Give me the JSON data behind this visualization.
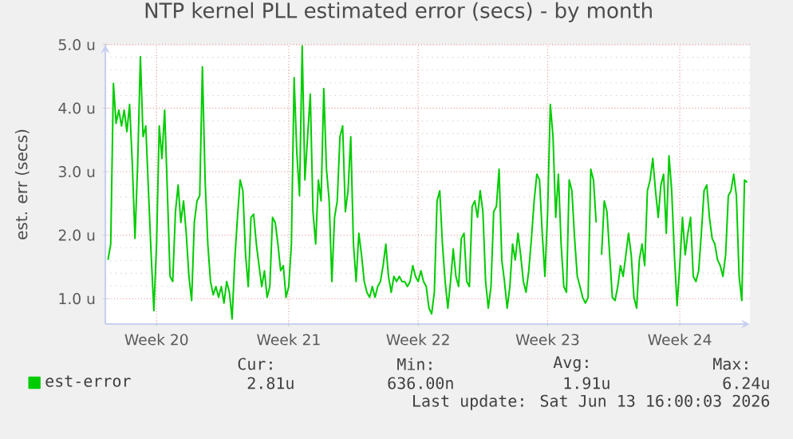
{
  "chart_data": {
    "type": "line",
    "title": "NTP kernel PLL estimated error (secs) - by month",
    "ylabel": "est. err (secs)",
    "ylim": [
      0.6,
      5.0
    ],
    "categories": [
      null,
      null,
      null,
      null,
      null,
      null,
      null,
      null,
      null,
      null,
      null,
      null,
      null,
      null,
      null,
      null,
      null,
      null,
      "Week 20",
      null,
      null,
      null,
      null,
      null,
      null,
      null,
      null,
      null,
      null,
      null,
      null,
      null,
      null,
      null,
      null,
      null,
      null,
      null,
      null,
      null,
      null,
      null,
      null,
      null,
      null,
      null,
      null,
      null,
      null,
      null,
      null,
      null,
      null,
      null,
      null,
      null,
      null,
      null,
      null,
      null,
      null,
      null,
      null,
      null,
      null,
      null,
      null,
      "Week 21",
      null,
      null,
      null,
      null,
      null,
      null,
      null,
      null,
      null,
      null,
      null,
      null,
      null,
      null,
      null,
      null,
      null,
      null,
      null,
      null,
      null,
      null,
      null,
      null,
      null,
      null,
      null,
      null,
      null,
      null,
      null,
      null,
      null,
      null,
      null,
      null,
      null,
      null,
      null,
      null,
      null,
      null,
      null,
      null,
      null,
      null,
      null,
      "Week 22",
      null,
      null,
      null,
      null,
      null,
      null,
      null,
      null,
      null,
      null,
      null,
      null,
      null,
      null,
      null,
      null,
      null,
      null,
      null,
      null,
      null,
      null,
      null,
      null,
      null,
      null,
      null,
      null,
      null,
      null,
      null,
      null,
      null,
      null,
      null,
      null,
      null,
      null,
      null,
      null,
      null,
      null,
      null,
      null,
      null,
      null,
      null,
      "Week 23",
      null,
      null,
      null,
      null,
      null,
      null,
      null,
      null,
      null,
      null,
      null,
      null,
      null,
      null,
      null,
      null,
      null,
      null,
      null,
      null,
      null,
      null,
      null,
      null,
      null,
      null,
      null,
      null,
      null,
      null,
      null,
      null,
      null,
      null,
      null,
      null,
      null,
      null,
      null,
      null,
      null,
      null,
      null,
      null,
      null,
      null,
      null,
      null,
      "Week 24",
      null,
      null,
      null,
      null,
      null,
      null,
      null,
      null,
      null,
      null,
      null,
      null,
      null,
      null,
      null,
      null,
      null,
      null,
      null,
      null,
      null,
      null,
      null,
      null,
      null
    ],
    "yticks": [
      {
        "value": 1,
        "label": "1.0 u"
      },
      {
        "value": 2,
        "label": "2.0 u"
      },
      {
        "value": 3,
        "label": "3.0 u"
      },
      {
        "value": 4,
        "label": "4.0 u"
      },
      {
        "value": 5,
        "label": "5.0 u"
      }
    ],
    "grid": true,
    "legend": "bottom left",
    "marker": "none",
    "line_style": "solid",
    "series": [
      {
        "name": "est-error",
        "color": "#00cc00",
        "values": [
          1.61,
          1.86,
          4.39,
          3.76,
          3.97,
          3.72,
          3.97,
          3.63,
          4.06,
          3.13,
          1.95,
          3.13,
          4.81,
          3.55,
          3.72,
          2.7,
          1.69,
          0.81,
          1.86,
          3.72,
          3.21,
          3.97,
          2.7,
          1.35,
          1.27,
          2.37,
          2.79,
          2.2,
          2.54,
          2.03,
          1.35,
          0.97,
          2.2,
          2.54,
          2.62,
          4.65,
          2.87,
          1.86,
          1.27,
          1.06,
          1.19,
          1.02,
          1.19,
          0.93,
          1.27,
          1.1,
          0.68,
          1.61,
          2.28,
          2.87,
          2.7,
          1.69,
          1.19,
          2.28,
          2.33,
          1.86,
          1.52,
          1.19,
          1.44,
          1.02,
          1.19,
          2.28,
          2.2,
          1.86,
          1.44,
          1.52,
          1.02,
          1.19,
          1.86,
          4.48,
          3.3,
          2.62,
          4.98,
          2.87,
          3.55,
          4.22,
          2.37,
          1.86,
          2.87,
          2.54,
          4.31,
          3.04,
          2.54,
          1.27,
          2.28,
          2.54,
          3.55,
          3.72,
          2.37,
          2.7,
          3.55,
          1.86,
          1.27,
          2.03,
          1.69,
          1.27,
          1.1,
          1.02,
          1.19,
          1.02,
          1.19,
          1.27,
          1.52,
          1.86,
          1.35,
          1.1,
          1.35,
          1.27,
          1.35,
          1.27,
          1.27,
          1.19,
          1.27,
          1.52,
          1.35,
          1.27,
          1.44,
          1.27,
          1.19,
          0.85,
          0.76,
          1.1,
          2.54,
          2.7,
          1.86,
          1.27,
          0.85,
          1.27,
          1.78,
          1.35,
          1.19,
          1.95,
          2.03,
          1.27,
          1.19,
          2.45,
          2.54,
          2.28,
          2.7,
          2.37,
          1.27,
          0.85,
          1.19,
          2.37,
          2.45,
          3.04,
          1.61,
          1.27,
          0.85,
          1.19,
          1.86,
          1.61,
          2.03,
          1.69,
          1.27,
          1.1,
          1.44,
          1.95,
          2.54,
          2.96,
          2.87,
          2.03,
          1.35,
          2.37,
          4.06,
          3.55,
          2.28,
          2.96,
          1.86,
          1.19,
          1.1,
          2.87,
          2.7,
          1.95,
          1.35,
          1.19,
          1.02,
          0.93,
          1.02,
          3.04,
          2.87,
          2.2,
          null,
          1.69,
          2.54,
          2.37,
          1.69,
          1.02,
          0.97,
          1.19,
          1.52,
          1.35,
          1.69,
          2.03,
          1.69,
          1.02,
          0.85,
          1.61,
          1.86,
          1.52,
          2.7,
          2.87,
          3.21,
          2.7,
          2.28,
          2.79,
          2.96,
          2.03,
          3.25,
          2.7,
          1.69,
          0.89,
          1.52,
          2.28,
          1.69,
          2.03,
          2.28,
          1.35,
          1.27,
          1.44,
          2.03,
          2.7,
          2.79,
          2.28,
          1.95,
          1.86,
          1.61,
          1.52,
          1.35,
          1.69,
          2.62,
          2.7,
          2.96,
          2.62,
          1.35,
          0.97,
          2.87,
          2.83
        ]
      }
    ],
    "annotations": [
      "Cur:",
      "2.81u",
      "Min:",
      "636.00n",
      "Avg:",
      "1.91u",
      "Max:",
      "6.24u",
      "Last update: Sat Jun 13 16:00:03 2026"
    ]
  }
}
